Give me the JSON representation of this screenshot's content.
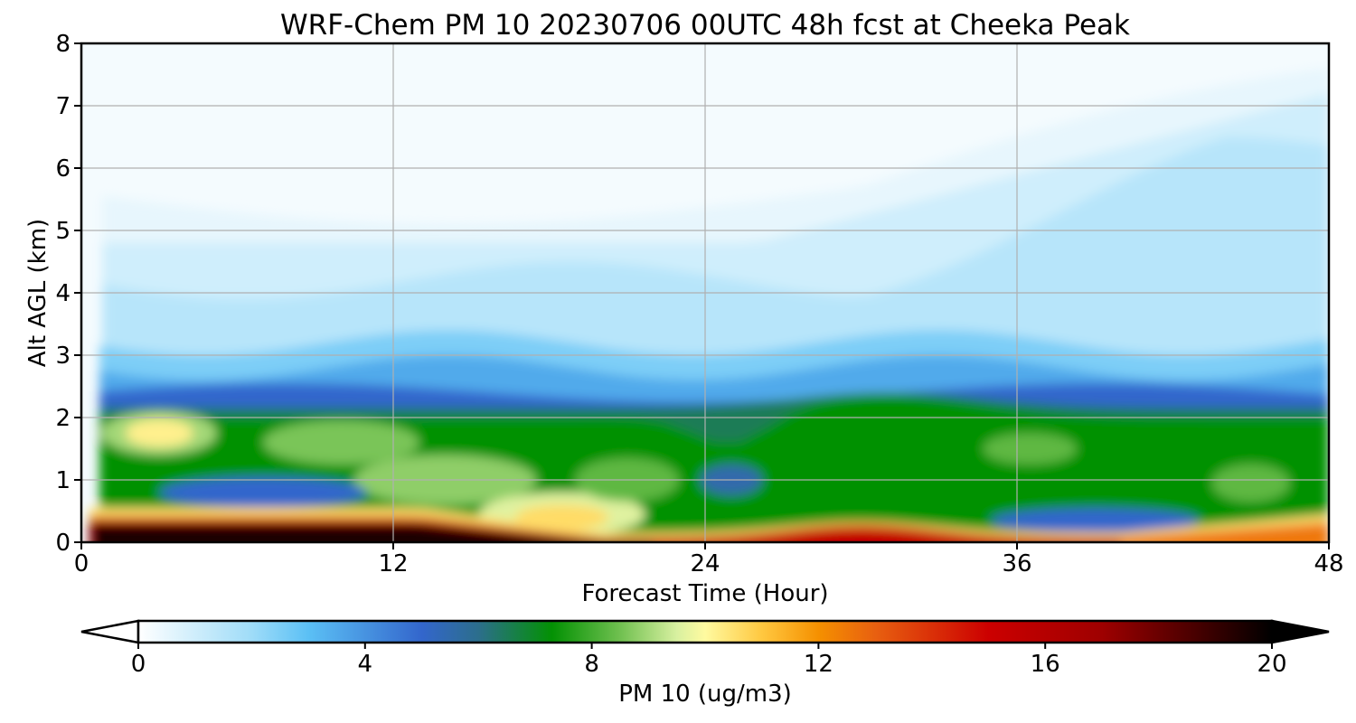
{
  "chart_data": {
    "type": "heatmap",
    "title": "WRF-Chem PM 10  20230706 00UTC 48h fcst at Cheeka Peak",
    "xlabel": "Forecast Time (Hour)",
    "ylabel": "Alt AGL (km)",
    "xlim": [
      0,
      48
    ],
    "ylim": [
      0,
      8
    ],
    "xticks": [
      "0",
      "12",
      "24",
      "36",
      "48"
    ],
    "yticks": [
      "0",
      "1",
      "2",
      "3",
      "4",
      "5",
      "6",
      "7",
      "8"
    ],
    "grid": true,
    "colorbar": {
      "label": "PM 10  (ug/m3)",
      "orientation": "horizontal",
      "position": "bottom",
      "extend": "both",
      "range": [
        0,
        20
      ],
      "ticks": [
        "0",
        "4",
        "8",
        "12",
        "16",
        "20"
      ],
      "colors": [
        {
          "value": 0,
          "color": "#ffffff"
        },
        {
          "value": 2,
          "color": "#9fdcf8"
        },
        {
          "value": 3,
          "color": "#5bc0f5"
        },
        {
          "value": 5,
          "color": "#3366cc"
        },
        {
          "value": 6,
          "color": "#2c6e8c"
        },
        {
          "value": 7.3,
          "color": "#039103"
        },
        {
          "value": 8.5,
          "color": "#70c050"
        },
        {
          "value": 9.5,
          "color": "#d8f0a0"
        },
        {
          "value": 10,
          "color": "#fffaa0"
        },
        {
          "value": 11,
          "color": "#ffc840"
        },
        {
          "value": 12,
          "color": "#f59000"
        },
        {
          "value": 13,
          "color": "#e86010"
        },
        {
          "value": 15,
          "color": "#cc0000"
        },
        {
          "value": 17,
          "color": "#9e0000"
        },
        {
          "value": 18.5,
          "color": "#500000"
        },
        {
          "value": 20,
          "color": "#000000"
        }
      ]
    },
    "features": [
      {
        "description": "near-surface maximum (black/dark red)",
        "hours": [
          0.5,
          13
        ],
        "alt_km": [
          0,
          0.35
        ],
        "value": 20
      },
      {
        "description": "elevated maximum",
        "hours": [
          1.5,
          4.5
        ],
        "alt_km": [
          1.4,
          2.1
        ],
        "value": 10
      },
      {
        "description": "maximum",
        "hours": [
          16,
          21
        ],
        "alt_km": [
          0.1,
          0.7
        ],
        "value": 10.5
      },
      {
        "description": "surface layer maximum",
        "hours": [
          26,
          35
        ],
        "alt_km": [
          0,
          0.3
        ],
        "value": 16
      },
      {
        "description": "surface layer maximum",
        "hours": [
          42,
          48
        ],
        "alt_km": [
          0,
          0.35
        ],
        "value": 12
      },
      {
        "description": "aerosol layer top (blue to light blue transition)",
        "hours": [
          1,
          48
        ],
        "alt_km": [
          2.0,
          3.2
        ],
        "value": 4
      }
    ]
  }
}
